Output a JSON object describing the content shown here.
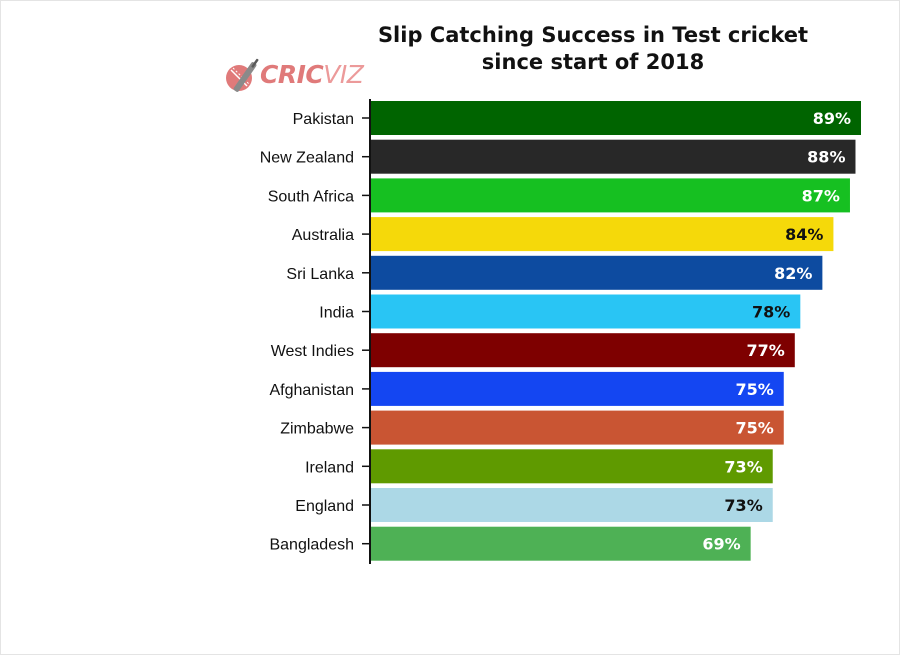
{
  "chart_data": {
    "type": "bar",
    "orientation": "horizontal",
    "title_line1": "Slip Catching Success in Test cricket",
    "title_line2": "since start of 2018",
    "categories": [
      "Pakistan",
      "New Zealand",
      "South Africa",
      "Australia",
      "Sri Lanka",
      "India",
      "West Indies",
      "Afghanistan",
      "Zimbabwe",
      "Ireland",
      "England",
      "Bangladesh"
    ],
    "values": [
      89,
      88,
      87,
      84,
      82,
      78,
      77,
      75,
      75,
      73,
      73,
      69
    ],
    "value_labels": [
      "89%",
      "88%",
      "87%",
      "84%",
      "82%",
      "78%",
      "77%",
      "75%",
      "75%",
      "73%",
      "73%",
      "69%"
    ],
    "colors": [
      "#006400",
      "#282828",
      "#16c021",
      "#f5d90a",
      "#0d4ba0",
      "#29c5f4",
      "#7e0000",
      "#1446f2",
      "#c95533",
      "#5f9a00",
      "#acd8e6",
      "#4eb155"
    ],
    "label_colors": [
      "#ffffff",
      "#ffffff",
      "#ffffff",
      "#111111",
      "#ffffff",
      "#111111",
      "#ffffff",
      "#ffffff",
      "#ffffff",
      "#ffffff",
      "#111111",
      "#ffffff"
    ],
    "xlim": [
      0,
      89
    ],
    "grid": false
  },
  "logo": {
    "part1": "CRIC",
    "part2": "VIZ"
  }
}
